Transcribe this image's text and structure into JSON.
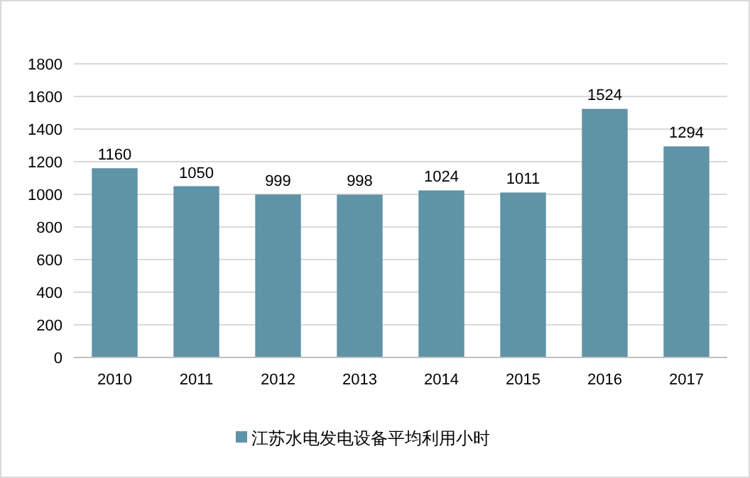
{
  "chart_data": {
    "type": "bar",
    "categories": [
      "2010",
      "2011",
      "2012",
      "2013",
      "2014",
      "2015",
      "2016",
      "2017"
    ],
    "series": [
      {
        "name": "江苏水电发电设备平均利用小时",
        "color": "#5f93a6",
        "values": [
          1160,
          1050,
          999,
          998,
          1024,
          1011,
          1524,
          1294
        ]
      }
    ],
    "ylim": [
      0,
      1800
    ],
    "yticks": [
      0,
      200,
      400,
      600,
      800,
      1000,
      1200,
      1400,
      1600,
      1800
    ],
    "grid": "y",
    "legend": "bottom",
    "data_labels": true
  }
}
